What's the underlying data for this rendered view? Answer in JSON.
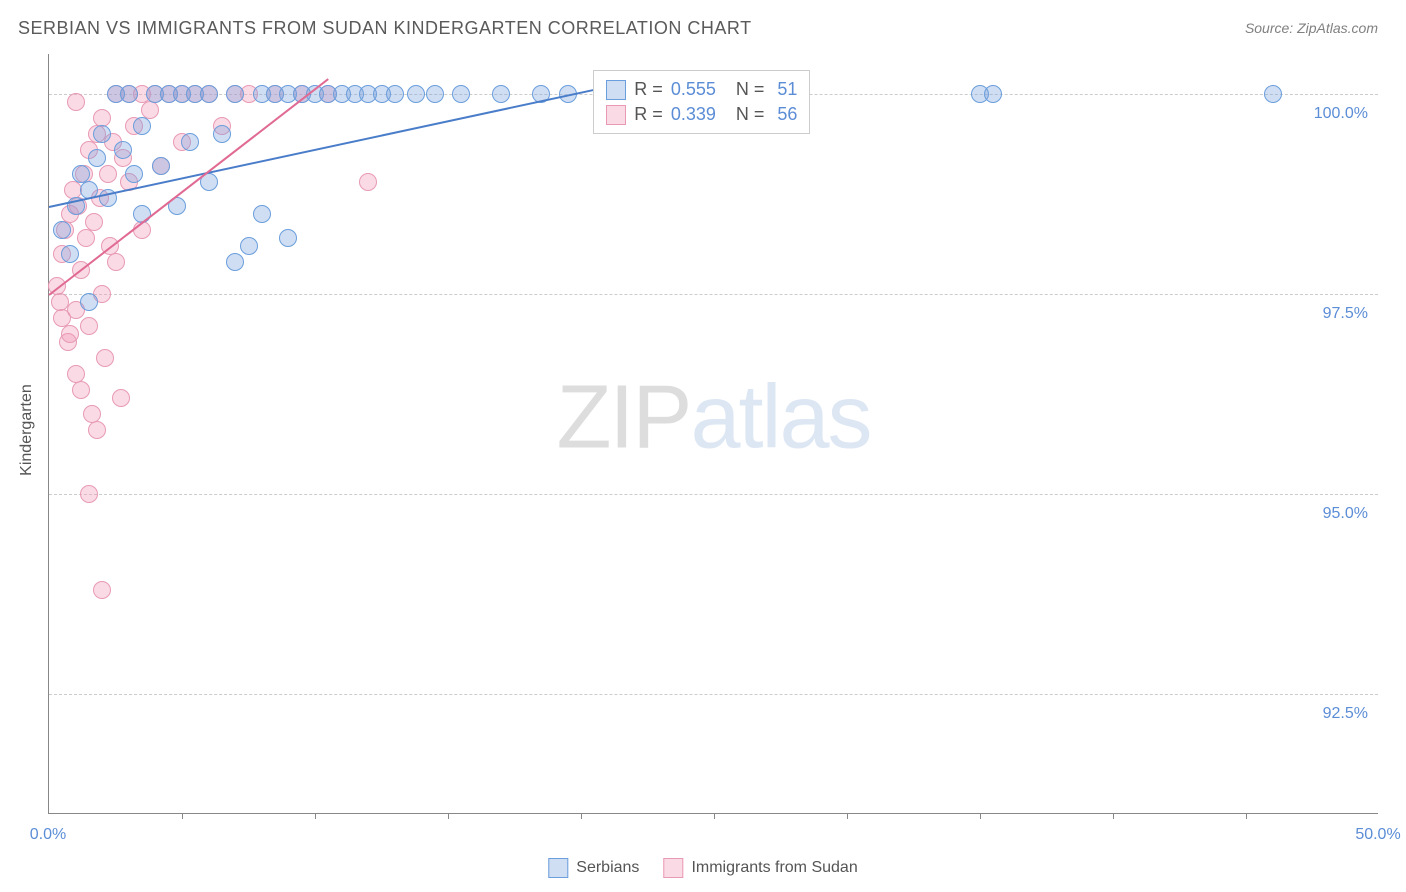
{
  "title": "SERBIAN VS IMMIGRANTS FROM SUDAN KINDERGARTEN CORRELATION CHART",
  "source": "Source: ZipAtlas.com",
  "ylabel": "Kindergarten",
  "watermark": {
    "part1": "ZIP",
    "part2": "atlas"
  },
  "colors": {
    "series1_fill": "rgba(120,160,220,0.35)",
    "series1_stroke": "#6a9edc",
    "series2_fill": "rgba(240,150,180,0.35)",
    "series2_stroke": "#e89ab5",
    "trend1": "#4a7dc9",
    "trend2": "#e06a94",
    "grid": "#cccccc",
    "axis": "#888888",
    "tick_text": "#5b8dd6",
    "title_text": "#5a5a5a"
  },
  "chart": {
    "type": "scatter",
    "xlim": [
      0.0,
      50.0
    ],
    "ylim": [
      91.0,
      100.5
    ],
    "yticks": [
      {
        "v": 100.0,
        "label": "100.0%"
      },
      {
        "v": 97.5,
        "label": "97.5%"
      },
      {
        "v": 95.0,
        "label": "95.0%"
      },
      {
        "v": 92.5,
        "label": "92.5%"
      }
    ],
    "xticks_major": [
      0.0,
      50.0
    ],
    "xticks_minor": [
      5,
      10,
      15,
      20,
      25,
      30,
      35,
      40,
      45
    ],
    "xtick_labels": [
      {
        "v": 0.0,
        "label": "0.0%"
      },
      {
        "v": 50.0,
        "label": "50.0%"
      }
    ],
    "marker_radius": 9,
    "series": [
      {
        "name": "Serbians",
        "color_fill": "rgba(120,160,220,0.35)",
        "color_stroke": "#6a9edc",
        "R": "0.555",
        "N": "51",
        "trend": {
          "x1": 0.0,
          "y1": 98.6,
          "x2": 21.0,
          "y2": 100.1
        },
        "points": [
          [
            0.5,
            98.3
          ],
          [
            0.8,
            98.0
          ],
          [
            1.0,
            98.6
          ],
          [
            1.2,
            99.0
          ],
          [
            1.5,
            98.8
          ],
          [
            1.5,
            97.4
          ],
          [
            1.8,
            99.2
          ],
          [
            2.0,
            99.5
          ],
          [
            2.2,
            98.7
          ],
          [
            2.5,
            100.0
          ],
          [
            2.8,
            99.3
          ],
          [
            3.0,
            100.0
          ],
          [
            3.2,
            99.0
          ],
          [
            3.5,
            99.6
          ],
          [
            3.5,
            98.5
          ],
          [
            4.0,
            100.0
          ],
          [
            4.2,
            99.1
          ],
          [
            4.5,
            100.0
          ],
          [
            4.8,
            98.6
          ],
          [
            5.0,
            100.0
          ],
          [
            5.3,
            99.4
          ],
          [
            5.5,
            100.0
          ],
          [
            6.0,
            98.9
          ],
          [
            6.0,
            100.0
          ],
          [
            6.5,
            99.5
          ],
          [
            7.0,
            100.0
          ],
          [
            7.0,
            97.9
          ],
          [
            7.5,
            98.1
          ],
          [
            8.0,
            100.0
          ],
          [
            8.0,
            98.5
          ],
          [
            8.5,
            100.0
          ],
          [
            9.0,
            98.2
          ],
          [
            9.0,
            100.0
          ],
          [
            9.5,
            100.0
          ],
          [
            10.0,
            100.0
          ],
          [
            10.5,
            100.0
          ],
          [
            11.0,
            100.0
          ],
          [
            11.5,
            100.0
          ],
          [
            12.0,
            100.0
          ],
          [
            12.5,
            100.0
          ],
          [
            13.0,
            100.0
          ],
          [
            13.8,
            100.0
          ],
          [
            14.5,
            100.0
          ],
          [
            15.5,
            100.0
          ],
          [
            17.0,
            100.0
          ],
          [
            18.5,
            100.0
          ],
          [
            19.5,
            100.0
          ],
          [
            21.0,
            100.0
          ],
          [
            35.0,
            100.0
          ],
          [
            35.5,
            100.0
          ],
          [
            46.0,
            100.0
          ]
        ]
      },
      {
        "name": "Immigrants from Sudan",
        "color_fill": "rgba(240,150,180,0.35)",
        "color_stroke": "#e89ab5",
        "R": "0.339",
        "N": "56",
        "trend": {
          "x1": 0.0,
          "y1": 97.5,
          "x2": 10.5,
          "y2": 100.2
        },
        "points": [
          [
            0.3,
            97.6
          ],
          [
            0.4,
            97.4
          ],
          [
            0.5,
            98.0
          ],
          [
            0.5,
            97.2
          ],
          [
            0.6,
            98.3
          ],
          [
            0.7,
            96.9
          ],
          [
            0.8,
            98.5
          ],
          [
            0.8,
            97.0
          ],
          [
            0.9,
            98.8
          ],
          [
            1.0,
            97.3
          ],
          [
            1.0,
            96.5
          ],
          [
            1.1,
            98.6
          ],
          [
            1.2,
            97.8
          ],
          [
            1.2,
            96.3
          ],
          [
            1.3,
            99.0
          ],
          [
            1.4,
            98.2
          ],
          [
            1.5,
            97.1
          ],
          [
            1.5,
            99.3
          ],
          [
            1.6,
            96.0
          ],
          [
            1.7,
            98.4
          ],
          [
            1.8,
            99.5
          ],
          [
            1.8,
            95.8
          ],
          [
            1.9,
            98.7
          ],
          [
            2.0,
            97.5
          ],
          [
            2.0,
            99.7
          ],
          [
            2.1,
            96.7
          ],
          [
            2.2,
            99.0
          ],
          [
            2.3,
            98.1
          ],
          [
            2.4,
            99.4
          ],
          [
            2.5,
            97.9
          ],
          [
            2.5,
            100.0
          ],
          [
            2.7,
            96.2
          ],
          [
            2.8,
            99.2
          ],
          [
            3.0,
            98.9
          ],
          [
            3.0,
            100.0
          ],
          [
            3.2,
            99.6
          ],
          [
            3.5,
            100.0
          ],
          [
            3.5,
            98.3
          ],
          [
            3.8,
            99.8
          ],
          [
            4.0,
            100.0
          ],
          [
            4.2,
            99.1
          ],
          [
            4.5,
            100.0
          ],
          [
            5.0,
            100.0
          ],
          [
            5.0,
            99.4
          ],
          [
            5.5,
            100.0
          ],
          [
            6.0,
            100.0
          ],
          [
            6.5,
            99.6
          ],
          [
            7.0,
            100.0
          ],
          [
            7.5,
            100.0
          ],
          [
            8.5,
            100.0
          ],
          [
            9.5,
            100.0
          ],
          [
            10.5,
            100.0
          ],
          [
            12.0,
            98.9
          ],
          [
            1.5,
            95.0
          ],
          [
            2.0,
            93.8
          ],
          [
            1.0,
            99.9
          ]
        ]
      }
    ]
  },
  "legend_top": {
    "rows": [
      {
        "swatch_fill": "rgba(120,160,220,0.35)",
        "swatch_stroke": "#6a9edc",
        "r_label": "R =",
        "r_val": "0.555",
        "n_label": "N =",
        "n_val": "51"
      },
      {
        "swatch_fill": "rgba(240,150,180,0.35)",
        "swatch_stroke": "#e89ab5",
        "r_label": "R =",
        "r_val": "0.339",
        "n_label": "N =",
        "n_val": "56"
      }
    ]
  },
  "legend_bottom": {
    "items": [
      {
        "swatch_fill": "rgba(120,160,220,0.35)",
        "swatch_stroke": "#6a9edc",
        "label": "Serbians"
      },
      {
        "swatch_fill": "rgba(240,150,180,0.35)",
        "swatch_stroke": "#e89ab5",
        "label": "Immigrants from Sudan"
      }
    ]
  }
}
